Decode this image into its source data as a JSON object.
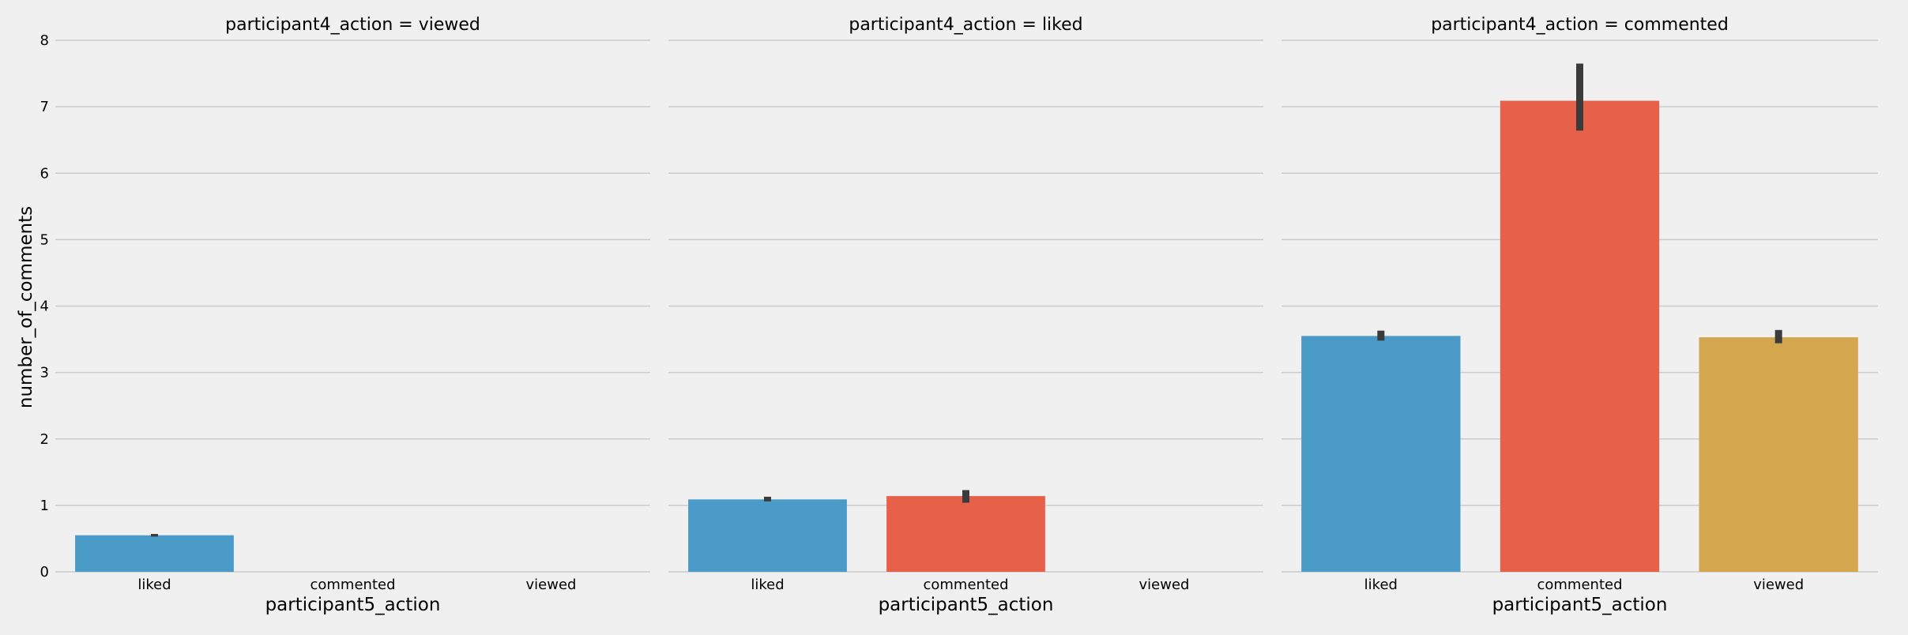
{
  "colors": {
    "background": "#f0f0f0",
    "grid": "#cbcbcb",
    "errorbar": "#3b3b3b",
    "liked": "#4a9bc8",
    "commented": "#e6604a",
    "viewed": "#d4a64e"
  },
  "chart_data": {
    "type": "bar",
    "ylabel": "number_of_comments",
    "xlabel": "participant5_action",
    "categories": [
      "liked",
      "commented",
      "viewed"
    ],
    "ylim": [
      0,
      8
    ],
    "yticks": [
      "0",
      "1",
      "2",
      "3",
      "4",
      "5",
      "6",
      "7",
      "8"
    ],
    "grid": true,
    "facets": [
      {
        "title": "participant4_action = viewed",
        "values": [
          0.55,
          null,
          null
        ],
        "err_low": [
          0.53,
          null,
          null
        ],
        "err_high": [
          0.57,
          null,
          null
        ]
      },
      {
        "title": "participant4_action = liked",
        "values": [
          1.09,
          1.14,
          null
        ],
        "err_low": [
          1.06,
          1.04,
          null
        ],
        "err_high": [
          1.13,
          1.23,
          null
        ]
      },
      {
        "title": "participant4_action = commented",
        "values": [
          3.55,
          7.09,
          3.53
        ],
        "err_low": [
          3.48,
          6.64,
          3.44
        ],
        "err_high": [
          3.63,
          7.65,
          3.64
        ]
      }
    ]
  }
}
